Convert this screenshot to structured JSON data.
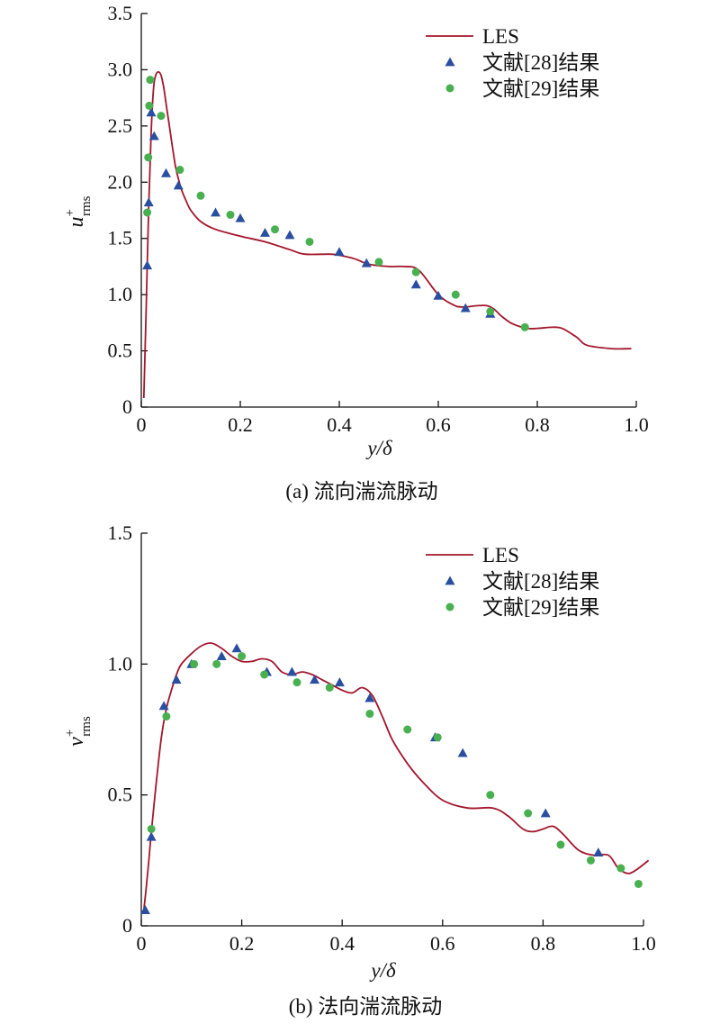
{
  "chart_data": [
    {
      "type": "line",
      "caption": "(a) 流向湍流脉动",
      "xlabel": "y/δ",
      "ylabel": {
        "main": "u",
        "sup": "+",
        "sub": "rms"
      },
      "xlim": [
        0,
        1.0
      ],
      "ylim": [
        0,
        3.5
      ],
      "xticks": [
        "0",
        "0.2",
        "0.4",
        "0.6",
        "0.8",
        "1.0"
      ],
      "xtick_values": [
        0,
        0.2,
        0.4,
        0.6,
        0.8,
        1.0
      ],
      "yticks": [
        "0",
        "0.5",
        "1.0",
        "1.5",
        "2.0",
        "2.5",
        "3.0",
        "3.5"
      ],
      "ytick_values": [
        0,
        0.5,
        1.0,
        1.5,
        2.0,
        2.5,
        3.0,
        3.5
      ],
      "legend_position": "top-right",
      "grid": false,
      "series": [
        {
          "name": "LES",
          "kind": "line",
          "color": "#a3162c",
          "x": [
            0.005,
            0.01,
            0.015,
            0.02,
            0.025,
            0.03,
            0.035,
            0.04,
            0.045,
            0.05,
            0.055,
            0.06,
            0.065,
            0.07,
            0.08,
            0.09,
            0.1,
            0.12,
            0.15,
            0.2,
            0.25,
            0.3,
            0.33,
            0.38,
            0.4,
            0.43,
            0.46,
            0.5,
            0.53,
            0.56,
            0.6,
            0.63,
            0.65,
            0.7,
            0.73,
            0.75,
            0.78,
            0.8,
            0.83,
            0.85,
            0.88,
            0.9,
            0.95,
            0.99
          ],
          "y": [
            0.08,
            0.9,
            1.8,
            2.45,
            2.85,
            2.96,
            2.98,
            2.95,
            2.85,
            2.7,
            2.55,
            2.4,
            2.25,
            2.12,
            1.95,
            1.84,
            1.75,
            1.65,
            1.58,
            1.52,
            1.47,
            1.4,
            1.36,
            1.36,
            1.35,
            1.32,
            1.27,
            1.25,
            1.25,
            1.22,
            1.0,
            0.91,
            0.89,
            0.9,
            0.8,
            0.74,
            0.7,
            0.7,
            0.71,
            0.7,
            0.62,
            0.55,
            0.52,
            0.52
          ]
        },
        {
          "name": "文献[28]结果",
          "kind": "scatter",
          "marker": "triangle",
          "color": "#2a4fa0",
          "x": [
            0.012,
            0.015,
            0.02,
            0.026,
            0.05,
            0.075,
            0.15,
            0.2,
            0.25,
            0.3,
            0.4,
            0.455,
            0.555,
            0.6,
            0.655,
            0.705
          ],
          "y": [
            1.26,
            1.82,
            2.62,
            2.41,
            2.08,
            1.97,
            1.73,
            1.68,
            1.55,
            1.53,
            1.38,
            1.28,
            1.09,
            0.99,
            0.88,
            0.83
          ]
        },
        {
          "name": "文献[29]结果",
          "kind": "scatter",
          "marker": "circle",
          "color": "#49b050",
          "x": [
            0.012,
            0.014,
            0.016,
            0.018,
            0.04,
            0.078,
            0.12,
            0.18,
            0.27,
            0.34,
            0.48,
            0.555,
            0.635,
            0.705,
            0.775
          ],
          "y": [
            1.73,
            2.22,
            2.68,
            2.91,
            2.59,
            2.11,
            1.88,
            1.71,
            1.58,
            1.47,
            1.29,
            1.2,
            1.0,
            0.85,
            0.71
          ]
        }
      ]
    },
    {
      "type": "line",
      "caption": "(b) 法向湍流脉动",
      "xlabel": "y/δ",
      "ylabel": {
        "main": "v",
        "sup": "+",
        "sub": "rms"
      },
      "xlim": [
        0,
        1.0
      ],
      "ylim": [
        0,
        1.5
      ],
      "xticks": [
        "0",
        "0.2",
        "0.4",
        "0.6",
        "0.8",
        "1.0"
      ],
      "xtick_values": [
        0,
        0.2,
        0.4,
        0.6,
        0.8,
        1.0
      ],
      "yticks": [
        "0",
        "0.5",
        "1.0",
        "1.5"
      ],
      "ytick_values": [
        0,
        0.5,
        1.0,
        1.5
      ],
      "legend_position": "top-right",
      "grid": false,
      "series": [
        {
          "name": "LES",
          "kind": "line",
          "color": "#a3162c",
          "x": [
            0.005,
            0.01,
            0.015,
            0.02,
            0.03,
            0.04,
            0.05,
            0.06,
            0.07,
            0.08,
            0.1,
            0.12,
            0.14,
            0.16,
            0.18,
            0.2,
            0.22,
            0.24,
            0.26,
            0.28,
            0.3,
            0.32,
            0.34,
            0.36,
            0.38,
            0.4,
            0.42,
            0.44,
            0.46,
            0.48,
            0.5,
            0.53,
            0.56,
            0.6,
            0.65,
            0.7,
            0.73,
            0.76,
            0.78,
            0.8,
            0.82,
            0.84,
            0.87,
            0.9,
            0.93,
            0.95,
            0.97,
            0.99,
            1.01
          ],
          "y": [
            0.06,
            0.15,
            0.25,
            0.36,
            0.55,
            0.72,
            0.83,
            0.9,
            0.96,
            1.0,
            1.04,
            1.07,
            1.08,
            1.06,
            1.03,
            1.01,
            1.01,
            1.02,
            1.01,
            0.97,
            0.96,
            0.97,
            0.96,
            0.94,
            0.92,
            0.9,
            0.89,
            0.91,
            0.88,
            0.8,
            0.71,
            0.62,
            0.55,
            0.48,
            0.45,
            0.45,
            0.42,
            0.37,
            0.36,
            0.37,
            0.38,
            0.35,
            0.29,
            0.27,
            0.27,
            0.22,
            0.2,
            0.22,
            0.25
          ]
        },
        {
          "name": "文献[28]结果",
          "kind": "scatter",
          "marker": "triangle",
          "color": "#2a4fa0",
          "x": [
            0.008,
            0.02,
            0.045,
            0.07,
            0.1,
            0.16,
            0.19,
            0.25,
            0.3,
            0.345,
            0.395,
            0.455,
            0.585,
            0.64,
            0.805,
            0.91
          ],
          "y": [
            0.06,
            0.34,
            0.84,
            0.94,
            1.0,
            1.03,
            1.06,
            0.97,
            0.97,
            0.94,
            0.93,
            0.87,
            0.72,
            0.66,
            0.43,
            0.28
          ]
        },
        {
          "name": "文献[29]结果",
          "kind": "scatter",
          "marker": "circle",
          "color": "#49b050",
          "x": [
            0.02,
            0.05,
            0.105,
            0.15,
            0.2,
            0.245,
            0.31,
            0.375,
            0.455,
            0.53,
            0.59,
            0.695,
            0.77,
            0.835,
            0.895,
            0.955,
            0.99
          ],
          "y": [
            0.37,
            0.8,
            1.0,
            1.0,
            1.03,
            0.96,
            0.93,
            0.91,
            0.81,
            0.75,
            0.72,
            0.5,
            0.43,
            0.31,
            0.25,
            0.22,
            0.16
          ]
        }
      ]
    }
  ]
}
